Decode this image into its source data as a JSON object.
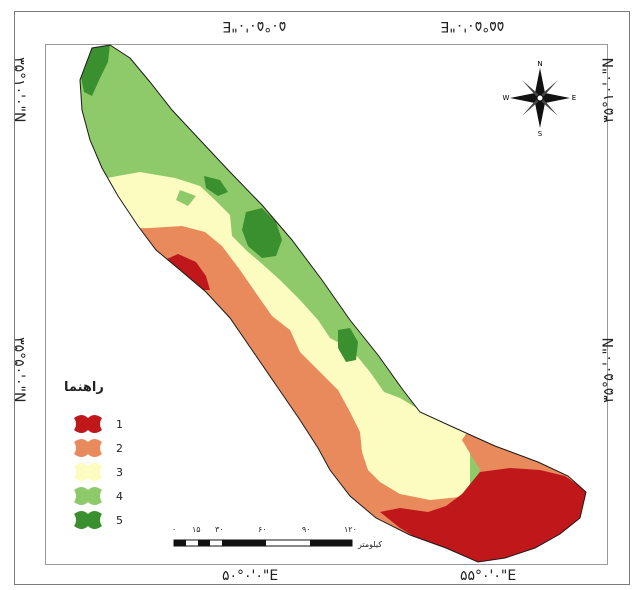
{
  "coordinates": {
    "top_left": "۵۰°۵۰'۰\"E",
    "top_right": "۵۵°۵۰'۰\"E",
    "bottom_left": "۵۰°۰'۰\"E",
    "bottom_right": "۵۵°۰'۰\"E",
    "left_top": "۳۵°۱۰'۰\"N",
    "left_mid": "۳۵°۵۰'۰\"N",
    "right_top": "۳۵°۱۰'۰\"N",
    "right_mid": "۳۵°۵۰'۰\"N"
  },
  "legend": {
    "title": "راهنما",
    "items": [
      {
        "label": "1",
        "color": "#c0171b"
      },
      {
        "label": "2",
        "color": "#e88a5c"
      },
      {
        "label": "3",
        "color": "#fdfcc0"
      },
      {
        "label": "4",
        "color": "#8fca6a"
      },
      {
        "label": "5",
        "color": "#3a8f2e"
      }
    ]
  },
  "scale_bar": {
    "ticks": [
      "۰",
      "۱۵",
      "۳۰",
      "۶۰",
      "۹۰",
      "۱۲۰"
    ],
    "unit": "کیلومتر"
  },
  "north_arrow": {
    "letters": [
      "N",
      "E",
      "S",
      "W"
    ]
  }
}
